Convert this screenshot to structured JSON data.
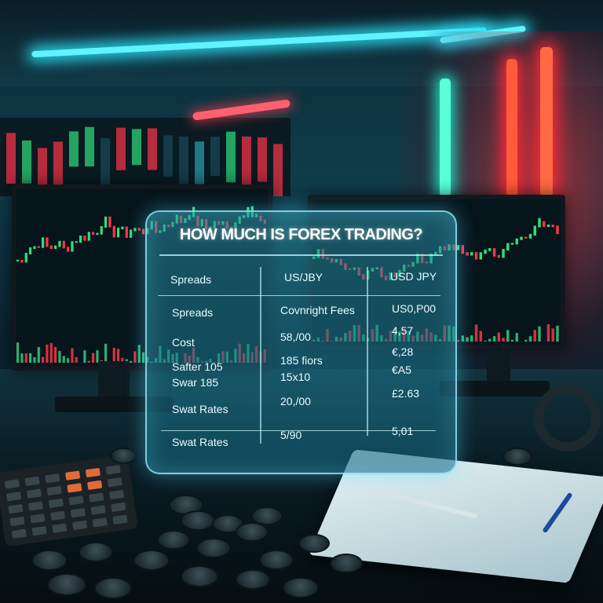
{
  "panel": {
    "title": "HOW MUCH IS FOREX TRADING?",
    "header": [
      "Spreads",
      "US/JBY",
      "USD JPY"
    ],
    "rows": [
      [
        "Spreads",
        "Covnright Fees",
        "US0,P00"
      ],
      [
        "Cost",
        "58,/00",
        "4,57"
      ],
      [
        "Safter 105",
        "185 fiors",
        "€,28"
      ],
      [
        "Swar 185",
        "15x10",
        "€A5"
      ],
      [
        "Swat Rates",
        "20,/00",
        "£2.63"
      ],
      [
        "Swat Rates",
        "5/90",
        "5,01"
      ]
    ]
  },
  "colors": {
    "neon_cyan": "#5ff3ff",
    "neon_red": "#ff2a3a",
    "candle_green": "#2fe07a",
    "candle_red": "#ff3548"
  }
}
